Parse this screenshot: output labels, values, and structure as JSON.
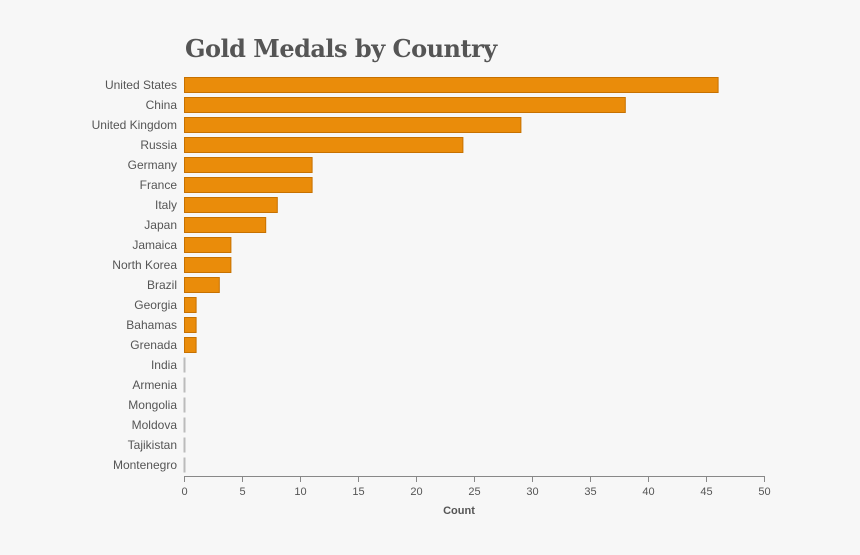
{
  "colors": {
    "background": "#f7f7f7",
    "bar_fill": "#ea8c0a",
    "bar_stroke": "#c77100",
    "zero_bar": "#bbbbbb",
    "axis": "#888888",
    "text": "#555555"
  },
  "chart_data": {
    "type": "bar",
    "orientation": "horizontal",
    "title": "Gold Medals by Country",
    "xlabel": "Count",
    "ylabel": "",
    "xlim": [
      0,
      50
    ],
    "xticks": [
      0,
      5,
      10,
      15,
      20,
      25,
      30,
      35,
      40,
      45,
      50
    ],
    "grid": false,
    "legend": "none",
    "categories": [
      "United States",
      "China",
      "United Kingdom",
      "Russia",
      "Germany",
      "France",
      "Italy",
      "Japan",
      "Jamaica",
      "North Korea",
      "Brazil",
      "Georgia",
      "Bahamas",
      "Grenada",
      "India",
      "Armenia",
      "Mongolia",
      "Moldova",
      "Tajikistan",
      "Montenegro"
    ],
    "values": [
      46,
      38,
      29,
      24,
      11,
      11,
      8,
      7,
      4,
      4,
      3,
      1,
      1,
      1,
      0,
      0,
      0,
      0,
      0,
      0
    ]
  }
}
